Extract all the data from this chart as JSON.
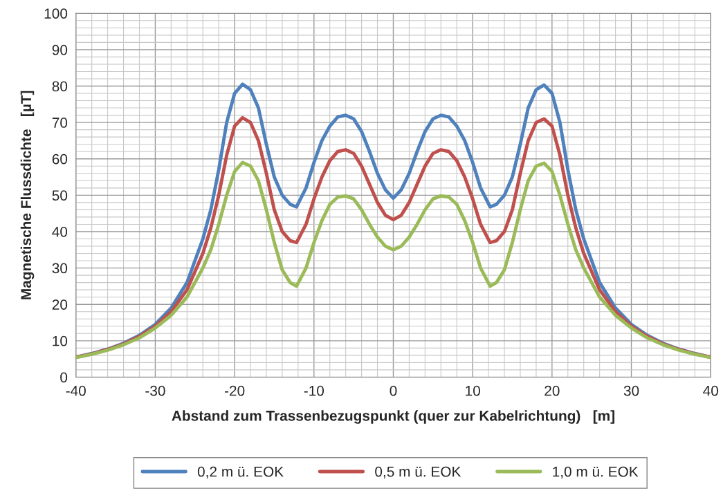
{
  "chart_data": {
    "type": "line",
    "xlabel": "Abstand zum Trassenbezugspunkt (quer zur Kabelrichtung)   [m]",
    "ylabel": "Magnetische Flussdichte   [µT]",
    "x": [
      -40,
      -38,
      -36,
      -34,
      -32,
      -30,
      -28,
      -26,
      -24,
      -23,
      -22,
      -21,
      -20,
      -19,
      -18,
      -17,
      -16,
      -15,
      -14,
      -13,
      -12.2,
      -11,
      -10,
      -9,
      -8,
      -7,
      -6,
      -5,
      -4,
      -3,
      -2,
      -1,
      0,
      1,
      2,
      3,
      4,
      5,
      6,
      7,
      8,
      9,
      10,
      11,
      12.2,
      13,
      14,
      15,
      16,
      17,
      18,
      19,
      20,
      21,
      22,
      23,
      24,
      26,
      28,
      30,
      32,
      34,
      36,
      38,
      40
    ],
    "series": [
      {
        "name": "0,2 m ü. EOK",
        "color": "#4f81bd",
        "values": [
          5.5,
          6.5,
          7.7,
          9.3,
          11.5,
          14.5,
          19,
          26,
          38,
          46,
          57,
          70,
          78,
          80.5,
          79,
          74,
          64,
          55,
          50,
          47.5,
          46.8,
          52,
          59,
          65,
          69,
          71.5,
          72,
          71,
          67.5,
          62,
          56,
          51.5,
          49.2,
          51.5,
          56,
          62,
          67.5,
          71,
          72,
          71.5,
          69,
          65,
          59,
          52,
          46.8,
          47.5,
          50,
          55,
          64,
          74,
          79,
          80.3,
          78,
          70,
          57,
          46,
          38,
          26,
          19,
          14.5,
          11.5,
          9.3,
          7.7,
          6.5,
          5.5
        ]
      },
      {
        "name": "0,5 m ü. EOK",
        "color": "#c0504d",
        "values": [
          5.5,
          6.4,
          7.6,
          9.1,
          11.2,
          14,
          18,
          24,
          34,
          41,
          50,
          61,
          69,
          71.3,
          70,
          65,
          56,
          46,
          40,
          37.5,
          37,
          42,
          49,
          55,
          59.5,
          62,
          62.5,
          61.5,
          58,
          53,
          48,
          44.5,
          43.3,
          44.5,
          48,
          53,
          58,
          61.5,
          62.5,
          62,
          59.5,
          55,
          49,
          42,
          37,
          37.5,
          40,
          46,
          56,
          65,
          70,
          71,
          69,
          61,
          50,
          41,
          34,
          24,
          18,
          14,
          11.2,
          9.1,
          7.6,
          6.4,
          5.5
        ]
      },
      {
        "name": "1,0 m ü. EOK",
        "color": "#9bbb59",
        "values": [
          5.4,
          6.3,
          7.4,
          8.9,
          10.8,
          13.5,
          17,
          22,
          30,
          35,
          42,
          50,
          56.5,
          59,
          58,
          54,
          46,
          37,
          29.5,
          26,
          25,
          30,
          37,
          43,
          47.5,
          49.5,
          49.8,
          49,
          46,
          42,
          38.5,
          36,
          35,
          36,
          38.5,
          42,
          46,
          49,
          49.8,
          49.5,
          47.5,
          43,
          37,
          30,
          25,
          26,
          29.5,
          37,
          46,
          54,
          58,
          58.8,
          56.5,
          50,
          42,
          35,
          30,
          22,
          17,
          13.5,
          10.8,
          8.9,
          7.4,
          6.3,
          5.4
        ]
      }
    ],
    "xlim": [
      -40,
      40
    ],
    "xticks": [
      -40,
      -30,
      -20,
      -10,
      0,
      10,
      20,
      30,
      40
    ],
    "ylim": [
      0,
      100
    ],
    "yticks": [
      0,
      10,
      20,
      30,
      40,
      50,
      60,
      70,
      80,
      90,
      100
    ],
    "grid": true,
    "legend": "bottom",
    "marker": "none",
    "line_style": "solid"
  }
}
